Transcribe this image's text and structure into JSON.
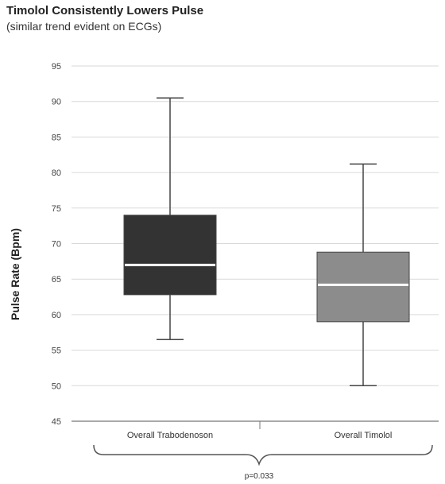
{
  "chart_data": {
    "type": "box",
    "title": "Timolol Consistently Lowers Pulse",
    "subtitle": "(similar trend evident on ECGs)",
    "ylabel": "Pulse Rate (Bpm)",
    "xlabel": "",
    "ylim": [
      45,
      95
    ],
    "yticks": [
      95,
      90,
      85,
      80,
      75,
      70,
      65,
      60,
      55,
      50,
      45
    ],
    "grid": true,
    "categories": [
      "Overall Trabodenoson",
      "Overall Timolol"
    ],
    "boxes": [
      {
        "min": 56.5,
        "q1": 62.8,
        "median": 67.0,
        "q3": 74.0,
        "max": 90.5,
        "color": "#333333"
      },
      {
        "min": 50.0,
        "q1": 59.0,
        "median": 64.2,
        "q3": 68.8,
        "max": 81.2,
        "color": "#8c8c8c"
      }
    ],
    "annotation": "p=0.033"
  }
}
